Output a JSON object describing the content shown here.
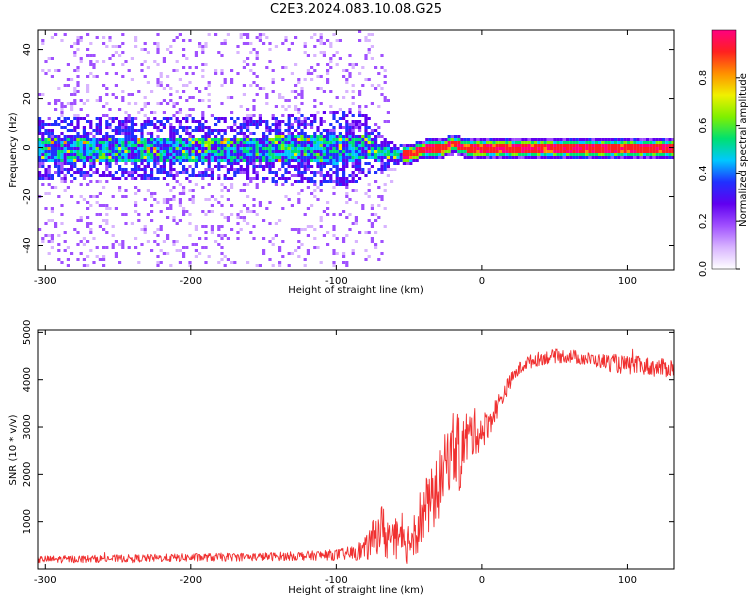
{
  "figure_title": "C2E3.2024.083.10.08.G25",
  "chart_data": [
    {
      "type": "heatmap",
      "title": "C2E3.2024.083.10.08.G25",
      "xlabel": "Height of straight line (km)",
      "ylabel": "Frequency (Hz)",
      "xlim": [
        -305,
        132
      ],
      "ylim": [
        -50,
        48
      ],
      "x_ticks": [
        -300,
        -200,
        -100,
        0,
        100
      ],
      "y_ticks": [
        -40,
        -20,
        0,
        20,
        40
      ],
      "colorbar": {
        "label": "Normalized spectral amplitude",
        "range": [
          0,
          1
        ],
        "ticks": [
          0.0,
          0.2,
          0.4,
          0.6,
          0.8
        ],
        "tick_labels": [
          "0.0",
          "0.2",
          "0.4",
          "0.6",
          "0.8"
        ],
        "colors": [
          "#ffffff",
          "#d8b4ff",
          "#a050ff",
          "#6000f0",
          "#2030ff",
          "#00c8ff",
          "#00e070",
          "#80f000",
          "#f0f000",
          "#ff9000",
          "#ff2020",
          "#ff0080"
        ]
      },
      "series": [
        {
          "x": [
            -300,
            -250,
            -200,
            -150,
            -100,
            -80,
            -70,
            -60,
            -50,
            -40,
            -30,
            -20,
            -10,
            0,
            50,
            100,
            130
          ],
          "center_frequency": [
            0,
            0,
            0,
            0,
            0,
            1,
            -2,
            -2,
            -2,
            0,
            0,
            2,
            0,
            0,
            0,
            0,
            0
          ],
          "core_half_width": [
            5,
            5,
            5,
            5,
            6,
            5,
            3,
            1.5,
            1.5,
            1.5,
            1.5,
            1.5,
            1.5,
            1.5,
            1.5,
            1.5,
            1.5
          ],
          "spread_half_width": [
            48,
            48,
            48,
            48,
            48,
            48,
            45,
            4,
            4,
            4,
            4,
            4,
            4,
            4,
            4,
            4,
            4
          ]
        }
      ],
      "grid": false,
      "legend": "colorbar right"
    },
    {
      "type": "line",
      "title": "",
      "xlabel": "Height of straight line (km)",
      "ylabel": "SNR (10 * v/v)",
      "xlim": [
        -305,
        132
      ],
      "ylim": [
        0,
        5050
      ],
      "x_ticks": [
        -300,
        -200,
        -100,
        0,
        100
      ],
      "y_ticks": [
        1000,
        2000,
        3000,
        4000,
        5000
      ],
      "series": [
        {
          "color": "#f03030",
          "x": [
            -305,
            -250,
            -200,
            -150,
            -120,
            -100,
            -90,
            -80,
            -75,
            -70,
            -65,
            -60,
            -55,
            -50,
            -45,
            -40,
            -35,
            -30,
            -25,
            -20,
            -15,
            -10,
            -5,
            0,
            5,
            10,
            15,
            20,
            25,
            30,
            40,
            50,
            60,
            70,
            80,
            90,
            100,
            110,
            120,
            132
          ],
          "y": [
            200,
            220,
            240,
            260,
            280,
            300,
            330,
            420,
            600,
            900,
            700,
            600,
            500,
            600,
            900,
            1200,
            1400,
            1700,
            2200,
            2600,
            2400,
            2800,
            2900,
            2900,
            3100,
            3400,
            3700,
            4000,
            4200,
            4350,
            4450,
            4500,
            4500,
            4450,
            4400,
            4350,
            4300,
            4300,
            4250,
            4250
          ],
          "noise_amplitude": [
            80,
            80,
            90,
            90,
            100,
            120,
            150,
            250,
            400,
            500,
            600,
            500,
            400,
            500,
            600,
            700,
            700,
            700,
            700,
            800,
            800,
            600,
            500,
            400,
            300,
            250,
            200,
            150,
            150,
            150,
            150,
            150,
            150,
            150,
            150,
            200,
            200,
            200,
            200,
            200
          ]
        }
      ],
      "grid": false,
      "legend": "none"
    }
  ]
}
